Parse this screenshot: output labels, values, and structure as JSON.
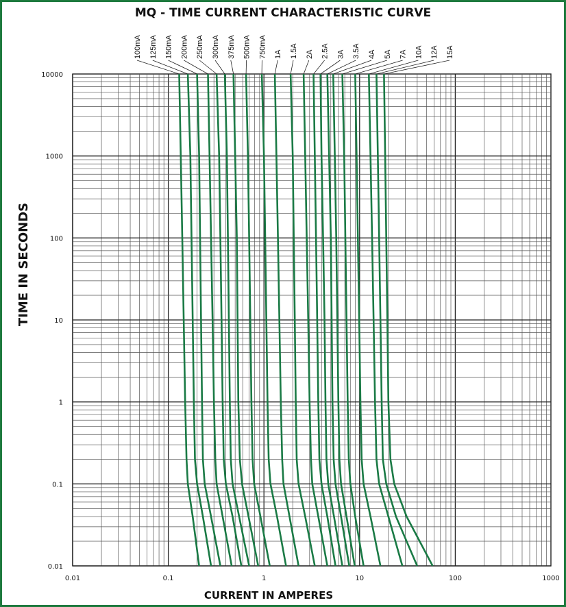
{
  "chart_data": {
    "type": "line",
    "title": "MQ - TIME CURRENT CHARACTERISTIC CURVE",
    "xlabel": "CURRENT IN AMPERES",
    "ylabel": "TIME IN SECONDS",
    "x_scale": "log",
    "y_scale": "log",
    "xlim": [
      0.01,
      1000
    ],
    "ylim": [
      0.01,
      10000
    ],
    "x_ticks": [
      "0.01",
      "0.1",
      "1",
      "10",
      "100",
      "1000"
    ],
    "y_ticks": [
      "10000",
      "1000",
      "100",
      "10",
      "1",
      "0.1",
      "0.01"
    ],
    "grid": true,
    "legend": "rotated rating labels above the plot",
    "series_color": "#1a7a45",
    "series": [
      {
        "name": "100mA",
        "points": [
          [
            0.13,
            10000
          ],
          [
            0.135,
            1000
          ],
          [
            0.14,
            100
          ],
          [
            0.145,
            10
          ],
          [
            0.15,
            1
          ],
          [
            0.155,
            0.2
          ],
          [
            0.16,
            0.1
          ],
          [
            0.18,
            0.04
          ],
          [
            0.21,
            0.01
          ]
        ]
      },
      {
        "name": "125mA",
        "points": [
          [
            0.16,
            10000
          ],
          [
            0.17,
            1000
          ],
          [
            0.175,
            100
          ],
          [
            0.18,
            10
          ],
          [
            0.185,
            1
          ],
          [
            0.19,
            0.2
          ],
          [
            0.2,
            0.1
          ],
          [
            0.23,
            0.04
          ],
          [
            0.28,
            0.01
          ]
        ]
      },
      {
        "name": "150mA",
        "points": [
          [
            0.2,
            10000
          ],
          [
            0.21,
            1000
          ],
          [
            0.215,
            100
          ],
          [
            0.22,
            10
          ],
          [
            0.225,
            1
          ],
          [
            0.23,
            0.2
          ],
          [
            0.24,
            0.1
          ],
          [
            0.28,
            0.04
          ],
          [
            0.35,
            0.01
          ]
        ]
      },
      {
        "name": "200mA",
        "points": [
          [
            0.26,
            10000
          ],
          [
            0.27,
            1000
          ],
          [
            0.28,
            100
          ],
          [
            0.29,
            10
          ],
          [
            0.3,
            1
          ],
          [
            0.31,
            0.2
          ],
          [
            0.32,
            0.1
          ],
          [
            0.37,
            0.04
          ],
          [
            0.46,
            0.01
          ]
        ]
      },
      {
        "name": "250mA",
        "points": [
          [
            0.32,
            10000
          ],
          [
            0.34,
            1000
          ],
          [
            0.35,
            100
          ],
          [
            0.36,
            10
          ],
          [
            0.37,
            1
          ],
          [
            0.38,
            0.2
          ],
          [
            0.4,
            0.1
          ],
          [
            0.47,
            0.04
          ],
          [
            0.58,
            0.01
          ]
        ]
      },
      {
        "name": "300mA",
        "points": [
          [
            0.39,
            10000
          ],
          [
            0.41,
            1000
          ],
          [
            0.42,
            100
          ],
          [
            0.43,
            10
          ],
          [
            0.44,
            1
          ],
          [
            0.45,
            0.2
          ],
          [
            0.47,
            0.1
          ],
          [
            0.55,
            0.04
          ],
          [
            0.7,
            0.01
          ]
        ]
      },
      {
        "name": "375mA",
        "points": [
          [
            0.48,
            10000
          ],
          [
            0.5,
            1000
          ],
          [
            0.52,
            100
          ],
          [
            0.53,
            10
          ],
          [
            0.54,
            1
          ],
          [
            0.56,
            0.2
          ],
          [
            0.59,
            0.1
          ],
          [
            0.69,
            0.04
          ],
          [
            0.87,
            0.01
          ]
        ]
      },
      {
        "name": "500mA",
        "points": [
          [
            0.65,
            10000
          ],
          [
            0.68,
            1000
          ],
          [
            0.7,
            100
          ],
          [
            0.72,
            10
          ],
          [
            0.74,
            1
          ],
          [
            0.76,
            0.2
          ],
          [
            0.79,
            0.1
          ],
          [
            0.92,
            0.04
          ],
          [
            1.15,
            0.01
          ]
        ]
      },
      {
        "name": "750mA",
        "points": [
          [
            0.95,
            10000
          ],
          [
            1.0,
            1000
          ],
          [
            1.03,
            100
          ],
          [
            1.06,
            10
          ],
          [
            1.09,
            1
          ],
          [
            1.12,
            0.2
          ],
          [
            1.17,
            0.1
          ],
          [
            1.37,
            0.04
          ],
          [
            1.7,
            0.01
          ]
        ]
      },
      {
        "name": "1A",
        "points": [
          [
            1.3,
            10000
          ],
          [
            1.35,
            1000
          ],
          [
            1.4,
            100
          ],
          [
            1.45,
            10
          ],
          [
            1.5,
            1
          ],
          [
            1.55,
            0.2
          ],
          [
            1.6,
            0.1
          ],
          [
            1.85,
            0.04
          ],
          [
            2.3,
            0.01
          ]
        ]
      },
      {
        "name": "1.5A",
        "points": [
          [
            1.9,
            10000
          ],
          [
            2.0,
            1000
          ],
          [
            2.05,
            100
          ],
          [
            2.1,
            10
          ],
          [
            2.15,
            1
          ],
          [
            2.2,
            0.2
          ],
          [
            2.3,
            0.1
          ],
          [
            2.7,
            0.04
          ],
          [
            3.4,
            0.01
          ]
        ]
      },
      {
        "name": "2A",
        "points": [
          [
            2.6,
            10000
          ],
          [
            2.7,
            1000
          ],
          [
            2.8,
            100
          ],
          [
            2.9,
            10
          ],
          [
            3.0,
            1
          ],
          [
            3.1,
            0.2
          ],
          [
            3.2,
            0.1
          ],
          [
            3.7,
            0.04
          ],
          [
            4.6,
            0.01
          ]
        ]
      },
      {
        "name": "2.5A",
        "points": [
          [
            3.3,
            10000
          ],
          [
            3.4,
            1000
          ],
          [
            3.5,
            100
          ],
          [
            3.6,
            10
          ],
          [
            3.7,
            1
          ],
          [
            3.8,
            0.2
          ],
          [
            4.0,
            0.1
          ],
          [
            4.6,
            0.04
          ],
          [
            5.6,
            0.01
          ]
        ]
      },
      {
        "name": "3A",
        "points": [
          [
            3.9,
            10000
          ],
          [
            4.0,
            1000
          ],
          [
            4.15,
            100
          ],
          [
            4.3,
            10
          ],
          [
            4.4,
            1
          ],
          [
            4.5,
            0.2
          ],
          [
            4.7,
            0.1
          ],
          [
            5.4,
            0.04
          ],
          [
            6.6,
            0.01
          ]
        ]
      },
      {
        "name": "3.5A",
        "points": [
          [
            4.6,
            10000
          ],
          [
            4.8,
            1000
          ],
          [
            5.0,
            100
          ],
          [
            5.1,
            10
          ],
          [
            5.2,
            1
          ],
          [
            5.35,
            0.2
          ],
          [
            5.6,
            0.1
          ],
          [
            6.4,
            0.04
          ],
          [
            7.8,
            0.01
          ]
        ]
      },
      {
        "name": "4A",
        "points": [
          [
            5.3,
            10000
          ],
          [
            5.5,
            1000
          ],
          [
            5.7,
            100
          ],
          [
            5.85,
            10
          ],
          [
            6.0,
            1
          ],
          [
            6.15,
            0.2
          ],
          [
            6.4,
            0.1
          ],
          [
            7.3,
            0.04
          ],
          [
            8.9,
            0.01
          ]
        ]
      },
      {
        "name": "5A",
        "points": [
          [
            6.6,
            10000
          ],
          [
            6.9,
            1000
          ],
          [
            7.1,
            100
          ],
          [
            7.3,
            10
          ],
          [
            7.5,
            1
          ],
          [
            7.7,
            0.2
          ],
          [
            8.0,
            0.1
          ],
          [
            9.0,
            0.04
          ],
          [
            11,
            0.01
          ]
        ]
      },
      {
        "name": "7A",
        "points": [
          [
            9.0,
            10000
          ],
          [
            9.3,
            1000
          ],
          [
            9.6,
            100
          ],
          [
            9.9,
            10
          ],
          [
            10.2,
            1
          ],
          [
            10.5,
            0.2
          ],
          [
            11,
            0.1
          ],
          [
            13,
            0.04
          ],
          [
            16.5,
            0.01
          ]
        ]
      },
      {
        "name": "10A",
        "points": [
          [
            12.5,
            10000
          ],
          [
            13,
            1000
          ],
          [
            13.5,
            100
          ],
          [
            14,
            10
          ],
          [
            14.5,
            1
          ],
          [
            15,
            0.2
          ],
          [
            16,
            0.1
          ],
          [
            20,
            0.04
          ],
          [
            28,
            0.01
          ]
        ]
      },
      {
        "name": "12A",
        "points": [
          [
            15,
            10000
          ],
          [
            15.5,
            1000
          ],
          [
            16,
            100
          ],
          [
            16.5,
            10
          ],
          [
            17,
            1
          ],
          [
            17.5,
            0.2
          ],
          [
            19,
            0.1
          ],
          [
            24,
            0.04
          ],
          [
            40,
            0.01
          ]
        ]
      },
      {
        "name": "15A",
        "points": [
          [
            18,
            10000
          ],
          [
            18.5,
            1000
          ],
          [
            19,
            100
          ],
          [
            19.5,
            10
          ],
          [
            20,
            1
          ],
          [
            21,
            0.2
          ],
          [
            23,
            0.1
          ],
          [
            31,
            0.04
          ],
          [
            58,
            0.01
          ]
        ]
      }
    ]
  }
}
